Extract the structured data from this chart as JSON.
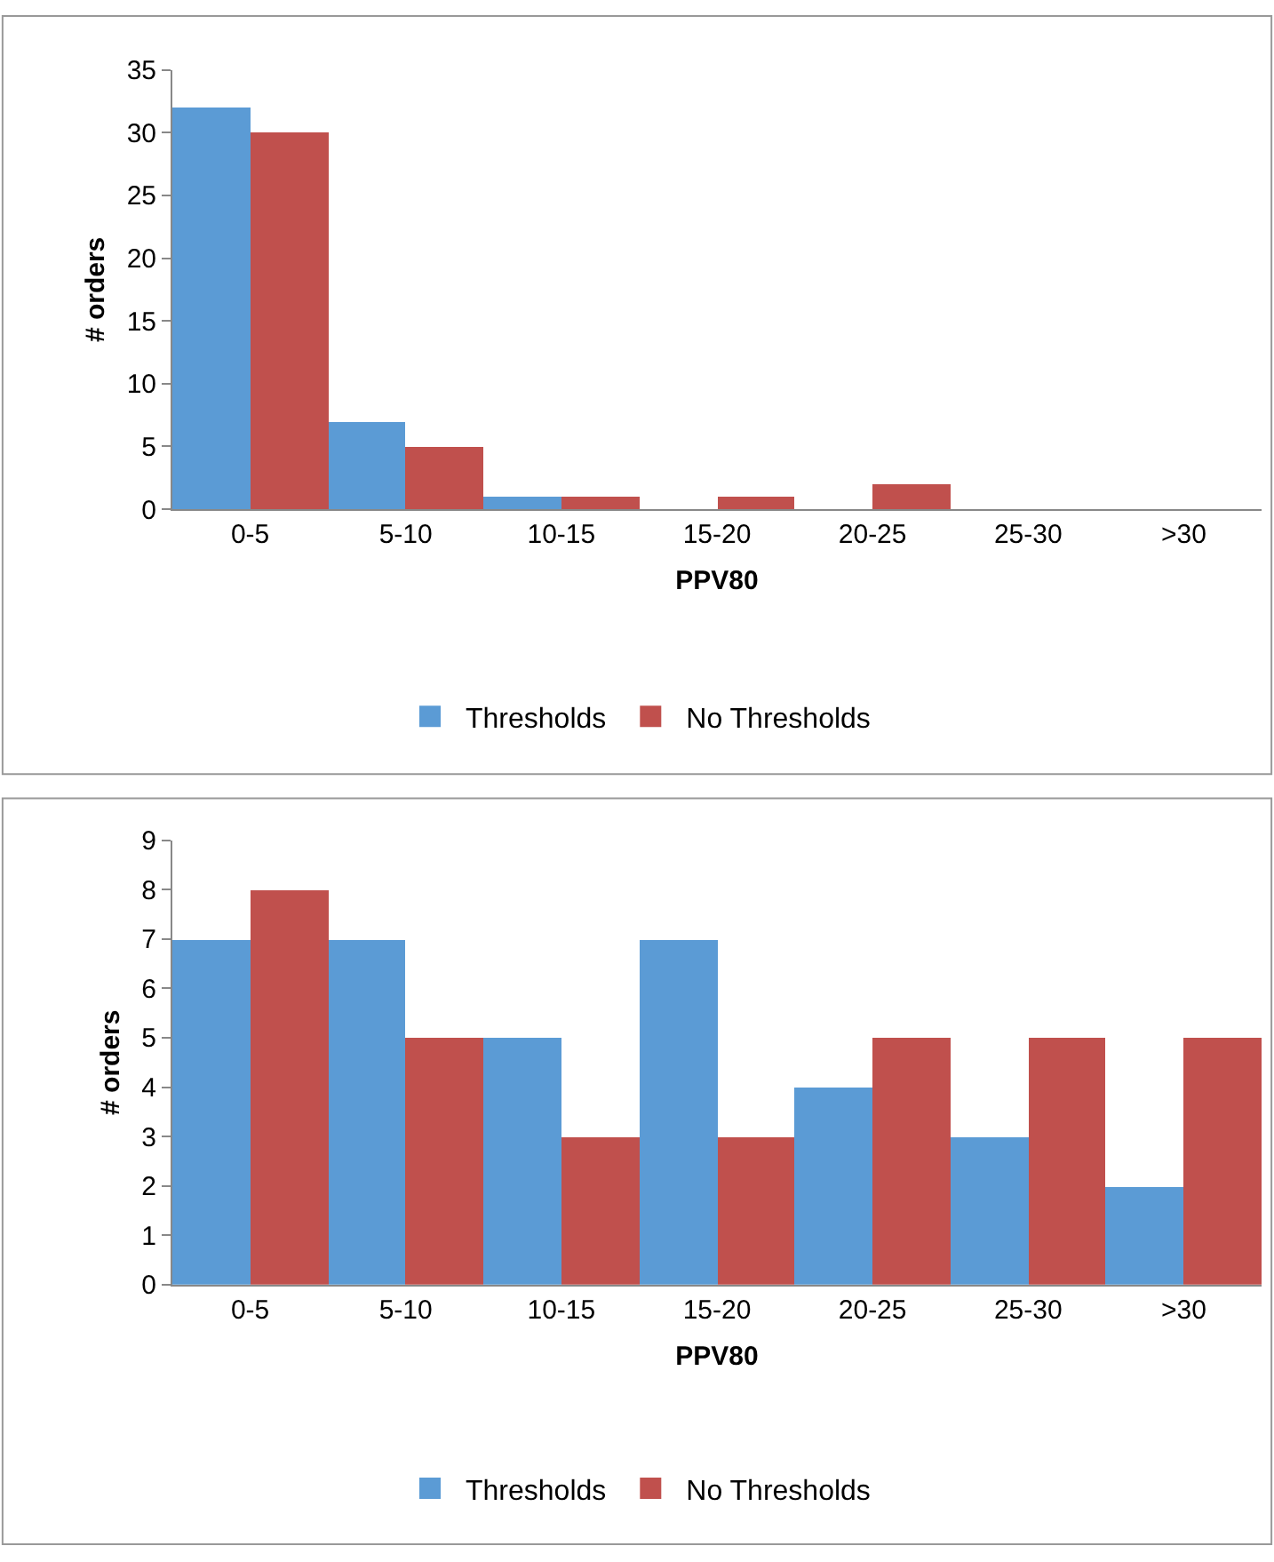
{
  "chart_data": [
    {
      "type": "bar",
      "xlabel": "PPV80",
      "ylabel": "# orders",
      "categories": [
        "0-5",
        "5-10",
        "10-15",
        "15-20",
        "20-25",
        "25-30",
        ">30"
      ],
      "series": [
        {
          "name": "Thresholds",
          "color": "#5b9bd5",
          "values": [
            32,
            7,
            1,
            0,
            0,
            0,
            0
          ]
        },
        {
          "name": "No Thresholds",
          "color": "#c0504d",
          "values": [
            30,
            5,
            1,
            1,
            2,
            0,
            0
          ]
        }
      ],
      "ylim": [
        0,
        35
      ],
      "yticks": [
        0,
        5,
        10,
        15,
        20,
        25,
        30,
        35
      ],
      "grid": false,
      "legend": "bottom"
    },
    {
      "type": "bar",
      "xlabel": "PPV80",
      "ylabel": "# orders",
      "categories": [
        "0-5",
        "5-10",
        "10-15",
        "15-20",
        "20-25",
        "25-30",
        ">30"
      ],
      "series": [
        {
          "name": "Thresholds",
          "color": "#5b9bd5",
          "values": [
            7,
            7,
            5,
            7,
            4,
            3,
            2
          ]
        },
        {
          "name": "No Thresholds",
          "color": "#c0504d",
          "values": [
            8,
            5,
            3,
            3,
            5,
            5,
            5
          ]
        }
      ],
      "ylim": [
        0,
        9
      ],
      "yticks": [
        0,
        1,
        2,
        3,
        4,
        5,
        6,
        7,
        8,
        9
      ],
      "grid": false,
      "legend": "bottom"
    }
  ]
}
